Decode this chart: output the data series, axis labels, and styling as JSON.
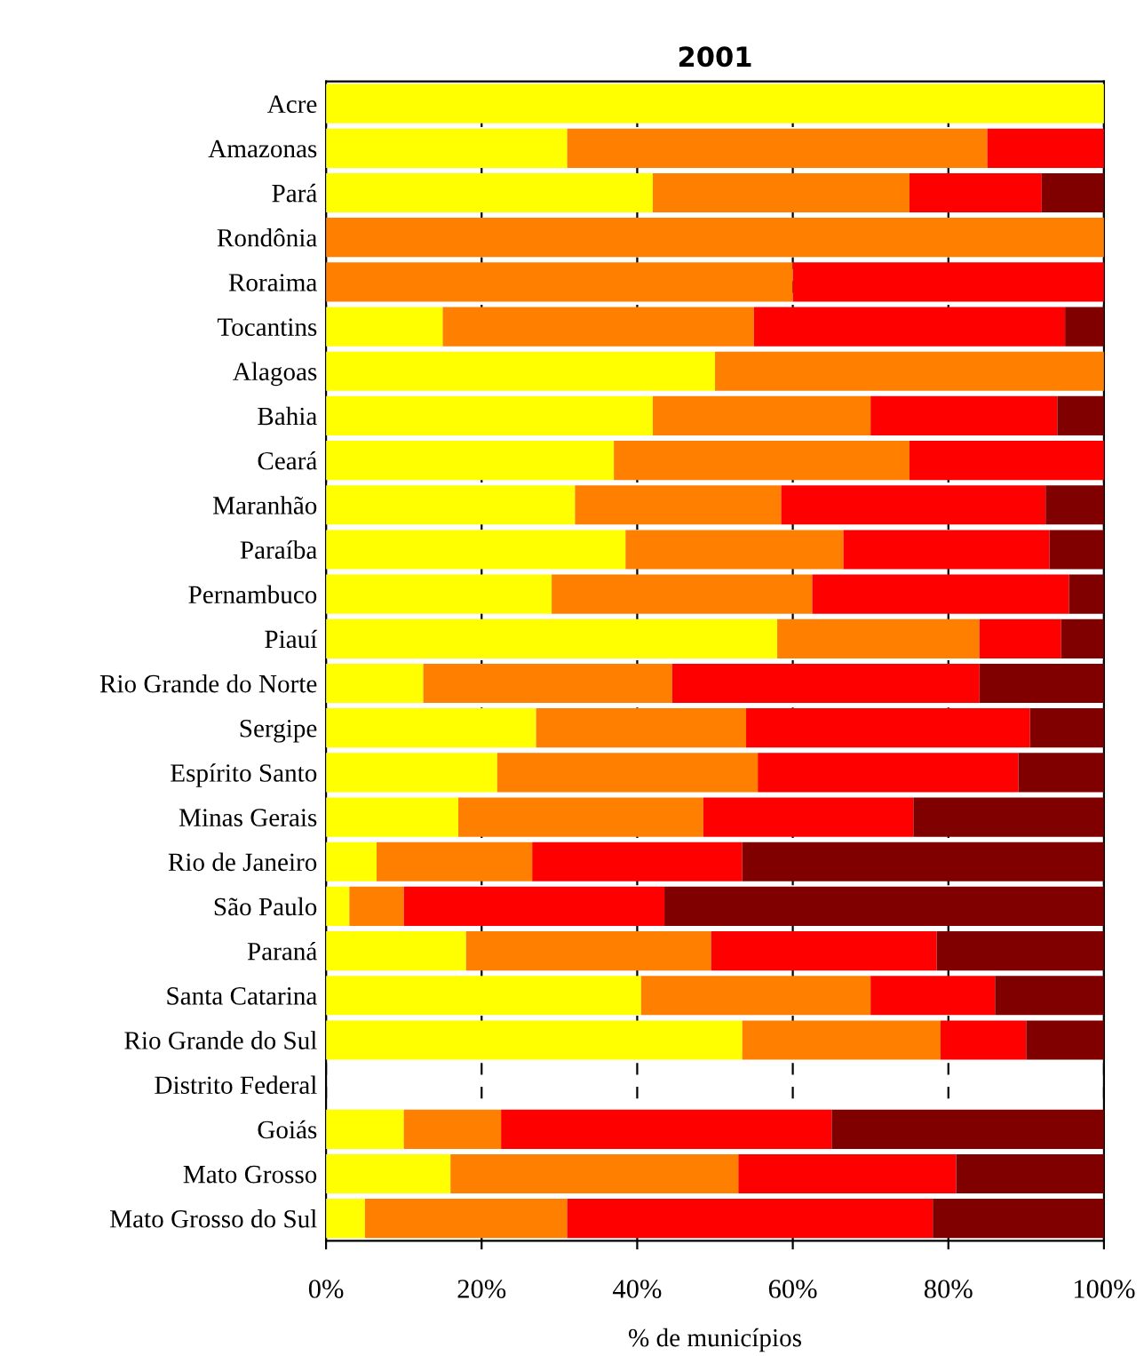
{
  "chart_data": {
    "type": "bar",
    "orientation": "horizontal",
    "stacked": true,
    "title": "2001",
    "xlabel": "% de municípios",
    "categories": [
      "Acre",
      "Amazonas",
      "Pará",
      "Rondônia",
      "Roraima",
      "Tocantins",
      "Alagoas",
      "Bahia",
      "Ceará",
      "Maranhão",
      "Paraíba",
      "Pernambuco",
      "Piauí",
      "Rio Grande do Norte",
      "Sergipe",
      "Espírito Santo",
      "Minas Gerais",
      "Rio de Janeiro",
      "São Paulo",
      "Paraná",
      "Santa Catarina",
      "Rio Grande do Sul",
      "Distrito Federal",
      "Goiás",
      "Mato Grosso",
      "Mato Grosso do Sul"
    ],
    "series": [
      {
        "color": "#ffff00",
        "values": [
          100,
          31,
          42,
          0,
          0,
          15,
          50,
          42,
          37,
          32,
          38.5,
          29,
          58,
          12.5,
          27,
          22,
          17,
          6.5,
          3,
          18,
          40.5,
          53.5,
          null,
          10,
          16,
          5
        ]
      },
      {
        "color": "#ff8000",
        "values": [
          0,
          54,
          33,
          100,
          60,
          40,
          50,
          28,
          38,
          26.5,
          28,
          33.5,
          26,
          32,
          27,
          33.5,
          31.5,
          20,
          7,
          31.5,
          29.5,
          25.5,
          null,
          12.5,
          37,
          26
        ]
      },
      {
        "color": "#ff0000",
        "values": [
          0,
          15,
          17,
          0,
          40,
          40,
          0,
          24,
          25,
          34,
          26.5,
          33,
          10.5,
          39.5,
          36.5,
          33.5,
          27,
          27,
          33.5,
          29,
          16,
          11,
          null,
          42.5,
          28,
          47
        ]
      },
      {
        "color": "#800000",
        "values": [
          0,
          0,
          8,
          0,
          0,
          5,
          0,
          6,
          0,
          7.5,
          7,
          4.5,
          5.5,
          16,
          9.5,
          11,
          24.5,
          46.5,
          56.5,
          21.5,
          14,
          10,
          null,
          35,
          19,
          22
        ]
      }
    ],
    "xlim": [
      0,
      100
    ],
    "xticks": [
      {
        "value": 0,
        "label": "0%"
      },
      {
        "value": 20,
        "label": "20%"
      },
      {
        "value": 40,
        "label": "40%"
      },
      {
        "value": 60,
        "label": "60%"
      },
      {
        "value": 80,
        "label": "80%"
      },
      {
        "value": 100,
        "label": "100%"
      }
    ],
    "grid": "x",
    "legend": false
  }
}
